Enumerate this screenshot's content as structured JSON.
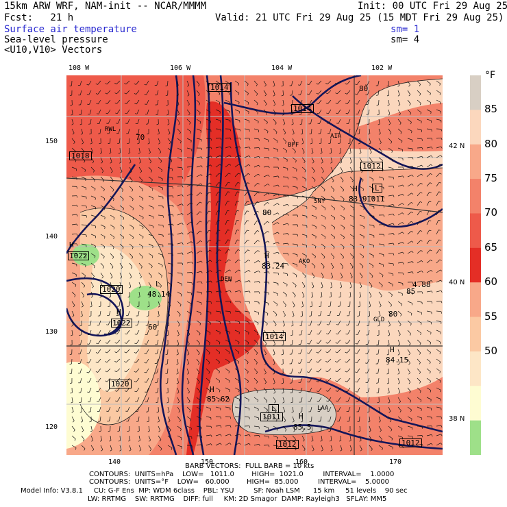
{
  "header": {
    "model": "15km ARW WRF, NAM-init -- NCAR/MMMM",
    "init": "Init: 00 UTC Fri 29 Aug 25",
    "forecast": "Fcst:   21 h",
    "valid": "Valid: 21 UTC Fri 29 Aug 25 (15 MDT Fri 29 Aug 25)",
    "field1": "Surface air temperature",
    "field1_sm": "sm= 1",
    "field2": "Sea-level pressure",
    "field2_sm": "sm= 4",
    "field3": "<U10,V10> Vectors"
  },
  "axes": {
    "top_lon": [
      "108 W",
      "106 W",
      "104 W",
      "102 W"
    ],
    "left_y": [
      "150",
      "140",
      "130",
      "120"
    ],
    "bottom_x": [
      "140",
      "150",
      "160",
      "170"
    ],
    "right_lat": [
      "42 N",
      "40 N",
      "38 N"
    ]
  },
  "legend": {
    "unit": "°F",
    "labels": [
      "85",
      "80",
      "75",
      "70",
      "65",
      "60",
      "55",
      "50"
    ],
    "colors": [
      "#d8cfc4",
      "#fbd7bd",
      "#f8a889",
      "#f3826a",
      "#ee5a4a",
      "#e42e26",
      "#f8a889",
      "#fbc9a3",
      "#fde6c6",
      "#fefcd2",
      "#9ee089"
    ]
  },
  "map": {
    "highs": [
      {
        "letter": "H",
        "value": "1022"
      },
      {
        "letter": "H",
        "value": "1022"
      },
      {
        "letter": "H",
        "value": "83.24"
      },
      {
        "letter": "H",
        "value": "84.15"
      },
      {
        "letter": "H",
        "value": "85.5"
      },
      {
        "letter": "H",
        "value": "83.9"
      },
      {
        "letter": "H",
        "value": "85.62"
      }
    ],
    "lows": [
      {
        "letter": "L",
        "value": "48.14"
      },
      {
        "letter": "L",
        "value": "1011"
      },
      {
        "letter": "L",
        "value": "1011"
      },
      {
        "letter": "L",
        "value": "4.88"
      }
    ],
    "isobar_labels": [
      "1014",
      "1014",
      "1012",
      "1018",
      "1020",
      "1020",
      "1014",
      "1012",
      "1012"
    ],
    "temp_labels": [
      "70",
      "80",
      "60",
      "80",
      "85",
      "80"
    ],
    "stations": [
      "RWL",
      "BFF",
      "SNY",
      "AKO",
      "DEN",
      "AIA",
      "LAA",
      "GLD"
    ]
  },
  "footer": {
    "barb": "BARB VECTORS:  FULL BARB = 10 kts",
    "line1": "CONTOURS:  UNITS=hPa    LOW=   1011.0        HIGH=  1021.0         INTERVAL=    1.0000",
    "line2": "CONTOURS:  UNITS=°F    LOW=   60.000        HIGH=  85.000         INTERVAL=    5.0000",
    "line3": "Model Info: V3.8.1     CU: G-F Ens  MP: WDM 6class    PBL: YSU         SF: Noah LSM      15 km     51 levels    90 sec",
    "line4": "LW: RRTMG    SW: RRTMG    DIFF: full     KM: 2D Smagor  DAMP: Rayleigh3   SFLAY: MM5"
  }
}
